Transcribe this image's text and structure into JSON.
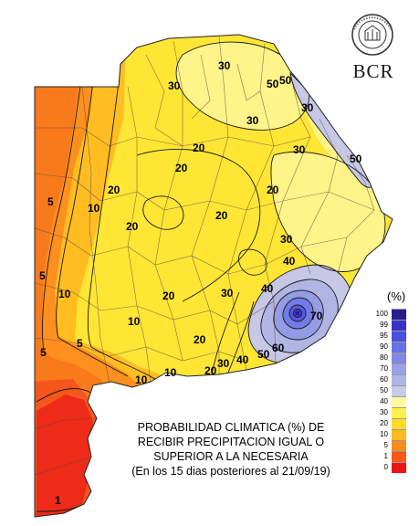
{
  "map": {
    "contour_labels": [
      "30",
      "30",
      "20",
      "30",
      "20",
      "20",
      "30",
      "50",
      "50",
      "10",
      "20",
      "30",
      "5",
      "10",
      "10",
      "20",
      "20",
      "30",
      "40",
      "40",
      "5",
      "10",
      "70",
      "60",
      "5",
      "10",
      "20",
      "30",
      "40",
      "50",
      "20",
      "50",
      "30",
      "20",
      "5",
      "1"
    ]
  },
  "logo": {
    "text": "BCR",
    "seal_text": "BOLSA DE COMERCIO DE ROSARIO"
  },
  "legend": {
    "unit": "(%)",
    "entries": [
      {
        "label": "100",
        "color": "#2a1c8c"
      },
      {
        "label": "99",
        "color": "#3a32c8"
      },
      {
        "label": "95",
        "color": "#4c4fe0"
      },
      {
        "label": "90",
        "color": "#6670e8"
      },
      {
        "label": "80",
        "color": "#8088e8"
      },
      {
        "label": "70",
        "color": "#9aa0e4"
      },
      {
        "label": "60",
        "color": "#b0b6e4"
      },
      {
        "label": "50",
        "color": "#c8cce8"
      },
      {
        "label": "40",
        "color": "#fffaa0"
      },
      {
        "label": "30",
        "color": "#fff050"
      },
      {
        "label": "20",
        "color": "#ffdc20"
      },
      {
        "label": "10",
        "color": "#ffb81e"
      },
      {
        "label": "5",
        "color": "#ff8a1c"
      },
      {
        "label": "1",
        "color": "#f65a14"
      },
      {
        "label": "0",
        "color": "#ee1414"
      }
    ]
  },
  "caption": {
    "line1": "PROBABILIDAD CLIMATICA (%) DE",
    "line2": "RECIBIR PRECIPITACION IGUAL O",
    "line3": "SUPERIOR A LA NECESARIA",
    "line4": "(En los 15 dias posteriores al 21/09/19)"
  }
}
